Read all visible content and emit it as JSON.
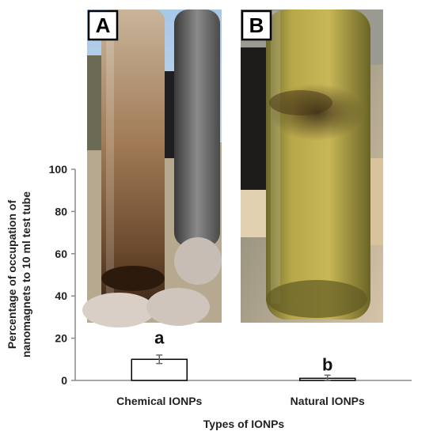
{
  "chart_data": {
    "type": "bar",
    "categories": [
      "Chemical IONPs",
      "Natural IONPs"
    ],
    "values": [
      10,
      1
    ],
    "errors": [
      2,
      1.5
    ],
    "significance": [
      "a",
      "b"
    ],
    "xlabel": "Types of IONPs",
    "ylabel_line1": "Percentage of occupation of",
    "ylabel_line2": "nanomagnets to 10 ml test tube",
    "ylim": [
      0,
      100
    ],
    "yticks": [
      "0",
      "20",
      "40",
      "60",
      "80",
      "100"
    ],
    "grid": false,
    "bar_color": "#ffffff",
    "bar_edge_color": "#000000"
  },
  "photos": {
    "panel_a_label": "A",
    "panel_b_label": "B",
    "panel_a_description": "Test tube with dark brown chemical IONP sediment held near a magnet",
    "panel_b_description": "Test tube with yellow-green natural IONP suspension held near a magnet"
  }
}
